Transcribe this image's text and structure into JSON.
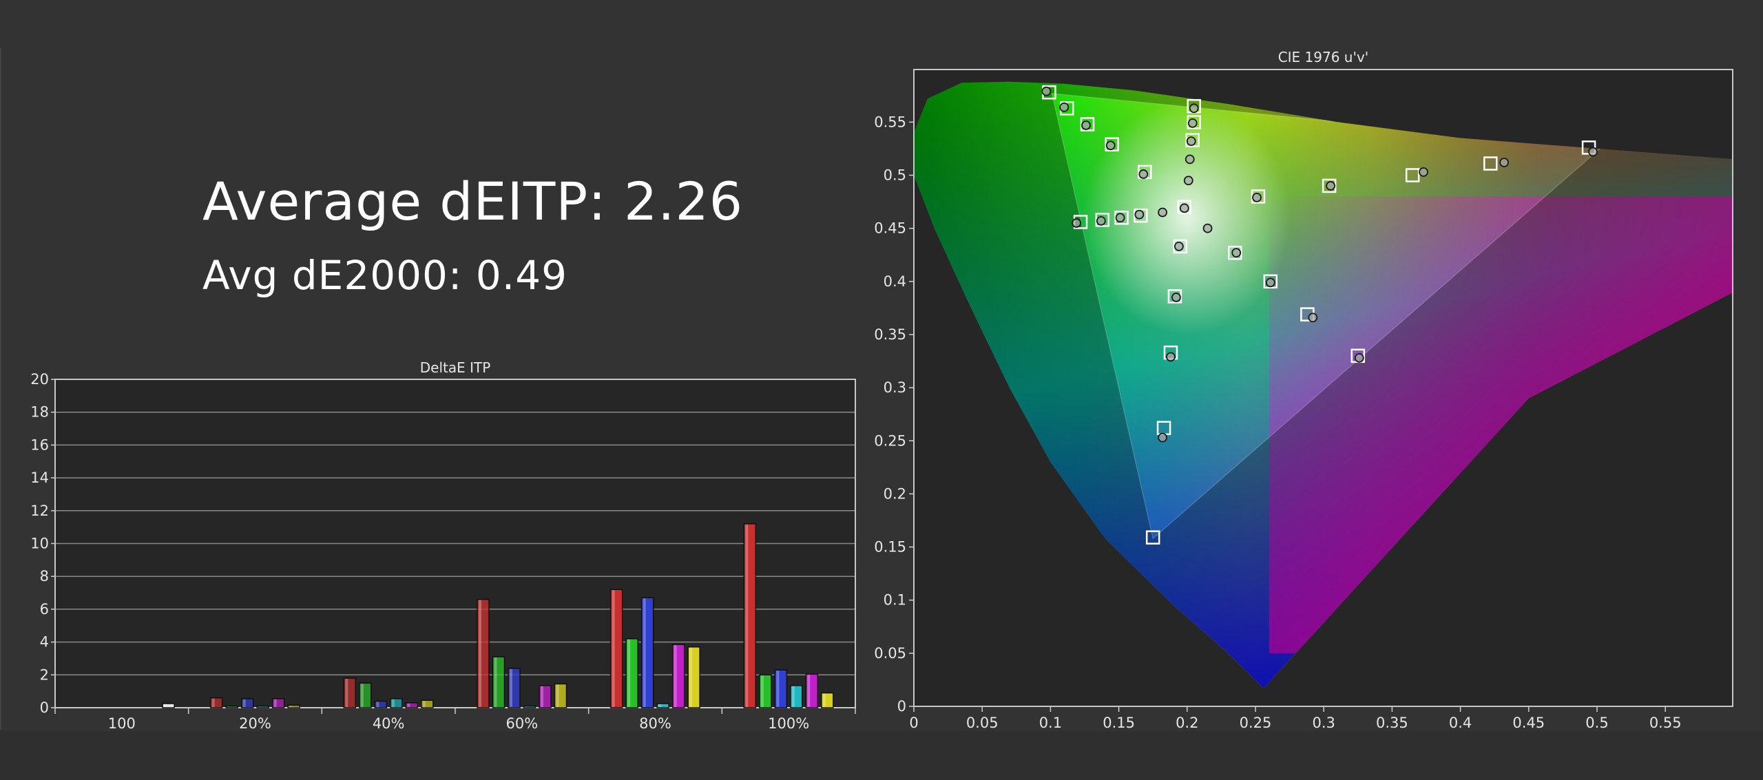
{
  "summary": {
    "average_ditp": "Average dEITP: 2.26",
    "avg_de2000": "Avg dE2000: 0.49"
  },
  "colors": {
    "background": "#333333",
    "plot_background": "#262626",
    "grid": "#8a8a8a",
    "red": "#c83030",
    "green": "#28c028",
    "blue": "#3040d0",
    "cyan": "#20b8c0",
    "magenta": "#c020c8",
    "yellow": "#d8d020",
    "white": "#e8e8e8"
  },
  "chart_data": [
    {
      "type": "bar",
      "title": "DeltaE ITP",
      "ylim": [
        0,
        20
      ],
      "y_ticks": [
        "0",
        "2",
        "4",
        "6",
        "8",
        "10",
        "12",
        "14",
        "16",
        "18",
        "20"
      ],
      "grid": true,
      "categories": [
        "100",
        "20%",
        "40%",
        "60%",
        "80%",
        "100%"
      ],
      "series": [
        {
          "color_key": "white",
          "values": [
            0.25,
            null,
            null,
            null,
            null,
            null
          ]
        },
        {
          "color_key": "red",
          "values": [
            null,
            0.6,
            1.8,
            6.6,
            7.2,
            11.2
          ]
        },
        {
          "color_key": "green",
          "values": [
            null,
            0.1,
            1.5,
            3.1,
            4.2,
            2.0
          ]
        },
        {
          "color_key": "blue",
          "values": [
            null,
            0.55,
            0.4,
            2.4,
            6.7,
            2.3
          ]
        },
        {
          "color_key": "cyan",
          "values": [
            null,
            0.1,
            0.55,
            0.1,
            0.25,
            1.35
          ]
        },
        {
          "color_key": "magenta",
          "values": [
            null,
            0.55,
            0.3,
            1.35,
            3.85,
            2.05
          ]
        },
        {
          "color_key": "yellow",
          "values": [
            null,
            0.15,
            0.45,
            1.45,
            3.7,
            0.9
          ]
        }
      ]
    },
    {
      "type": "scatter",
      "title": "CIE 1976 u'v'",
      "xlim": [
        0,
        0.6
      ],
      "ylim": [
        0,
        0.6
      ],
      "x_ticks": [
        "0",
        "0.05",
        "0.1",
        "0.15",
        "0.2",
        "0.25",
        "0.3",
        "0.35",
        "0.4",
        "0.45",
        "0.5",
        "0.55"
      ],
      "y_ticks": [
        "0",
        "0.05",
        "0.1",
        "0.15",
        "0.2",
        "0.25",
        "0.3",
        "0.35",
        "0.4",
        "0.45",
        "0.5",
        "0.55"
      ],
      "gamut_triangles": [
        {
          "label_visible": false,
          "points": [
            [
              0.503,
              0.526
            ],
            [
              0.101,
              0.577
            ],
            [
              0.175,
              0.158
            ]
          ]
        },
        {
          "label_visible": false,
          "points": [
            [
              0.623,
              0.506
            ],
            [
              0.0,
              0.6
            ],
            [
              0.256,
              0.017
            ]
          ]
        }
      ],
      "targets": [
        [
          0.099,
          0.578
        ],
        [
          0.112,
          0.563
        ],
        [
          0.127,
          0.548
        ],
        [
          0.145,
          0.529
        ],
        [
          0.169,
          0.503
        ],
        [
          0.122,
          0.456
        ],
        [
          0.138,
          0.458
        ],
        [
          0.152,
          0.46
        ],
        [
          0.166,
          0.462
        ],
        [
          0.205,
          0.565
        ],
        [
          0.205,
          0.55
        ],
        [
          0.204,
          0.533
        ],
        [
          0.198,
          0.47
        ],
        [
          0.195,
          0.433
        ],
        [
          0.191,
          0.386
        ],
        [
          0.188,
          0.333
        ],
        [
          0.183,
          0.262
        ],
        [
          0.175,
          0.159
        ],
        [
          0.252,
          0.48
        ],
        [
          0.304,
          0.49
        ],
        [
          0.365,
          0.5
        ],
        [
          0.422,
          0.511
        ],
        [
          0.494,
          0.526
        ],
        [
          0.235,
          0.427
        ],
        [
          0.261,
          0.4
        ],
        [
          0.288,
          0.369
        ],
        [
          0.325,
          0.33
        ]
      ],
      "measured": [
        [
          0.097,
          0.579
        ],
        [
          0.11,
          0.564
        ],
        [
          0.126,
          0.547
        ],
        [
          0.144,
          0.528
        ],
        [
          0.168,
          0.501
        ],
        [
          0.119,
          0.455
        ],
        [
          0.137,
          0.457
        ],
        [
          0.151,
          0.46
        ],
        [
          0.165,
          0.463
        ],
        [
          0.182,
          0.465
        ],
        [
          0.205,
          0.563
        ],
        [
          0.204,
          0.549
        ],
        [
          0.203,
          0.532
        ],
        [
          0.202,
          0.515
        ],
        [
          0.201,
          0.495
        ],
        [
          0.198,
          0.469
        ],
        [
          0.215,
          0.45
        ],
        [
          0.194,
          0.433
        ],
        [
          0.192,
          0.385
        ],
        [
          0.188,
          0.329
        ],
        [
          0.182,
          0.253
        ],
        [
          0.251,
          0.479
        ],
        [
          0.305,
          0.49
        ],
        [
          0.373,
          0.503
        ],
        [
          0.432,
          0.512
        ],
        [
          0.497,
          0.522
        ],
        [
          0.236,
          0.427
        ],
        [
          0.261,
          0.399
        ],
        [
          0.292,
          0.366
        ],
        [
          0.326,
          0.328
        ]
      ]
    }
  ]
}
